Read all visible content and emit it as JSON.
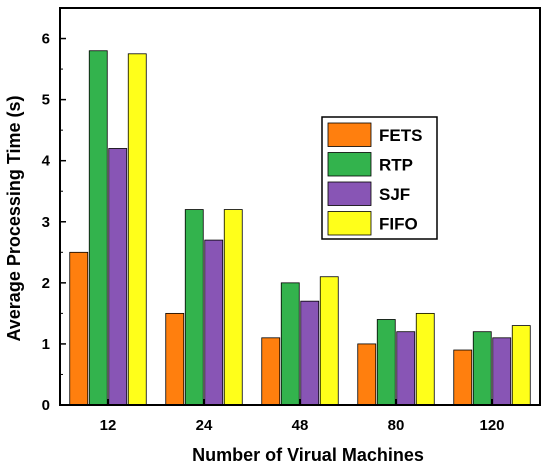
{
  "chart_data": {
    "type": "bar",
    "title": "",
    "xlabel": "Number of Virual Machines",
    "ylabel": "Average Processing Time (s)",
    "categories": [
      "12",
      "24",
      "48",
      "80",
      "120"
    ],
    "ylim": [
      0,
      6.5
    ],
    "yticks": [
      0,
      1,
      2,
      3,
      4,
      5,
      6
    ],
    "grid": false,
    "legend_position": "center-right",
    "series": [
      {
        "name": "FETS",
        "color": "#ff7f0e",
        "values": [
          2.5,
          1.5,
          1.1,
          1.0,
          0.9
        ]
      },
      {
        "name": "RTP",
        "color": "#33b34d",
        "values": [
          5.8,
          3.2,
          2.0,
          1.4,
          1.2
        ]
      },
      {
        "name": "SJF",
        "color": "#8855b5",
        "values": [
          4.2,
          2.7,
          1.7,
          1.2,
          1.1
        ]
      },
      {
        "name": "FIFO",
        "color": "#ffff1a",
        "values": [
          5.75,
          3.2,
          2.1,
          1.5,
          1.3
        ]
      }
    ]
  }
}
